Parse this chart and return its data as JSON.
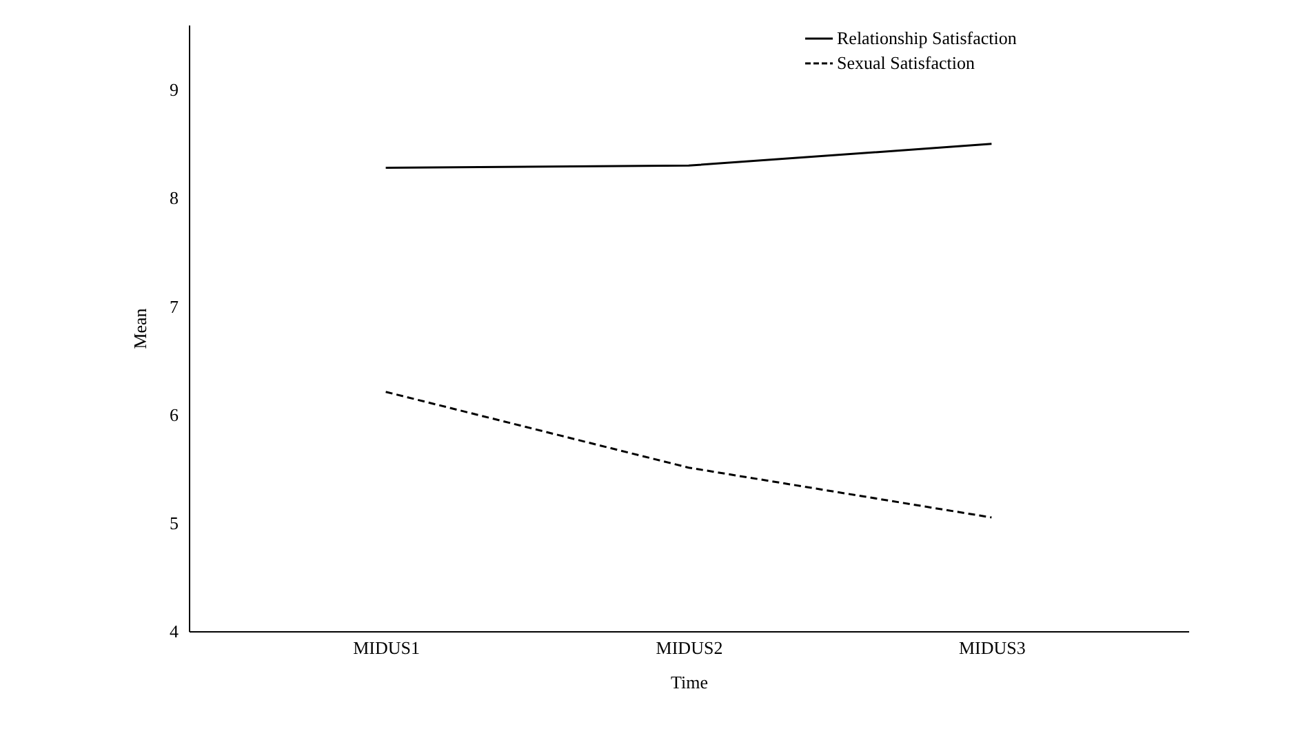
{
  "chart_data": {
    "type": "line",
    "xlabel": "Time",
    "ylabel": "Mean",
    "categories": [
      "MIDUS1",
      "MIDUS2",
      "MIDUS3"
    ],
    "series": [
      {
        "name": "Relationship Satisfaction",
        "color": "#000000",
        "line_style": "solid",
        "values": [
          8.28,
          8.3,
          8.5
        ]
      },
      {
        "name": "Sexual Satisfaction",
        "color": "#000000",
        "line_style": "dashed",
        "values": [
          6.21,
          5.51,
          5.05
        ]
      }
    ],
    "ylim": [
      4,
      9.6
    ],
    "yticks": [
      4,
      5,
      6,
      7,
      8,
      9
    ],
    "grid": false,
    "legend": "top right",
    "marker": "none"
  }
}
